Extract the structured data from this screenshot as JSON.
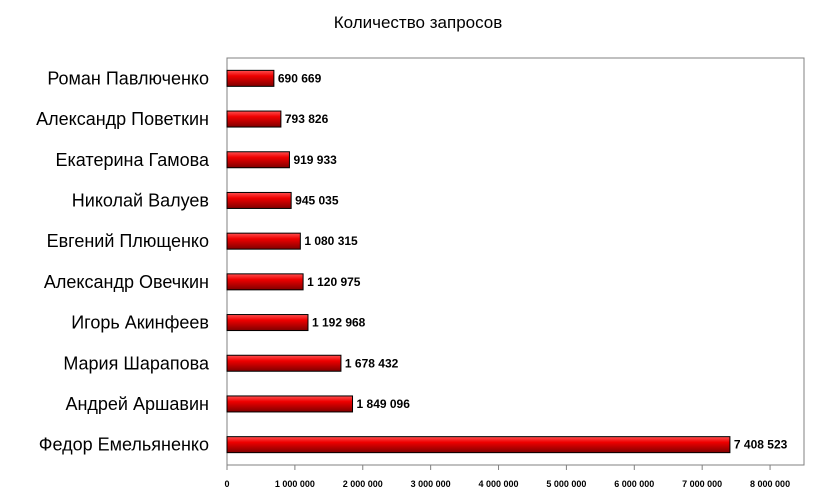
{
  "chart_data": {
    "type": "bar",
    "orientation": "horizontal",
    "title": "Количество запросов",
    "xlabel": "",
    "ylabel": "",
    "categories": [
      "Роман Павлюченко",
      "Александр Поветкин",
      "Екатерина Гамова",
      "Николай Валуев",
      "Евгений Плющенко",
      "Александр Овечкин",
      "Игорь Акинфеев",
      "Мария Шарапова",
      "Андрей Аршавин",
      "Федор Емельяненко"
    ],
    "values": [
      690669,
      793826,
      919933,
      945035,
      1080315,
      1120975,
      1192968,
      1678432,
      1849096,
      7408523
    ],
    "value_labels": [
      "690 669",
      "793 826",
      "919 933",
      "945 035",
      "1 080 315",
      "1 120 975",
      "1 192 968",
      "1 678 432",
      "1 849 096",
      "7 408 523"
    ],
    "xlim": [
      0,
      8500000
    ],
    "ticks": [
      0,
      1000000,
      2000000,
      3000000,
      4000000,
      5000000,
      6000000,
      7000000,
      8000000
    ],
    "tick_labels": [
      "0",
      "1 000 000",
      "2 000 000",
      "3 000 000",
      "4 000 000",
      "5 000 000",
      "6 000 000",
      "7 000 000",
      "8 000 000"
    ],
    "grid": false,
    "legend": "none",
    "colors": {
      "bar": "#e00000",
      "bar_dark": "#7a0000",
      "bar_light": "#ff4040",
      "frame": "#808080"
    }
  }
}
